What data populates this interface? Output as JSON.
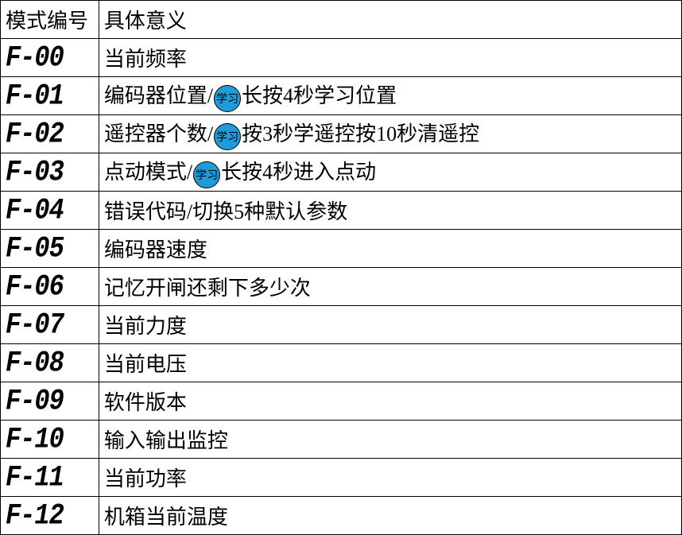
{
  "table": {
    "headers": {
      "code": "模式编号",
      "desc": "具体意义"
    },
    "badge_text": "学习",
    "badge_bg": "#1e9bd8",
    "badge_border": "#000000",
    "border_color": "#000000",
    "bg_color": "#ffffff",
    "header_fontsize": 26,
    "cell_fontsize": 26,
    "code_fontsize": 32,
    "code_color": "#000000",
    "rows": [
      {
        "code": "F-00",
        "parts": [
          {
            "t": "text",
            "v": "当前频率"
          }
        ]
      },
      {
        "code": "F-01",
        "parts": [
          {
            "t": "text",
            "v": "编码器位置/"
          },
          {
            "t": "badge"
          },
          {
            "t": "text",
            "v": "长按4秒学习位置"
          }
        ]
      },
      {
        "code": "F-02",
        "parts": [
          {
            "t": "text",
            "v": "遥控器个数/"
          },
          {
            "t": "badge"
          },
          {
            "t": "text",
            "v": "按3秒学遥控按10秒清遥控"
          }
        ]
      },
      {
        "code": "F-03",
        "parts": [
          {
            "t": "text",
            "v": "点动模式/"
          },
          {
            "t": "badge"
          },
          {
            "t": "text",
            "v": "长按4秒进入点动"
          }
        ]
      },
      {
        "code": "F-04",
        "parts": [
          {
            "t": "text",
            "v": "错误代码/切换5种默认参数"
          }
        ]
      },
      {
        "code": "F-05",
        "parts": [
          {
            "t": "text",
            "v": "编码器速度"
          }
        ]
      },
      {
        "code": "F-06",
        "parts": [
          {
            "t": "text",
            "v": "记忆开闸还剩下多少次"
          }
        ]
      },
      {
        "code": "F-07",
        "parts": [
          {
            "t": "text",
            "v": "当前力度"
          }
        ]
      },
      {
        "code": "F-08",
        "parts": [
          {
            "t": "text",
            "v": "当前电压"
          }
        ]
      },
      {
        "code": "F-09",
        "parts": [
          {
            "t": "text",
            "v": "软件版本"
          }
        ]
      },
      {
        "code": "F-10",
        "parts": [
          {
            "t": "text",
            "v": "输入输出监控"
          }
        ]
      },
      {
        "code": "F-11",
        "parts": [
          {
            "t": "text",
            "v": "当前功率"
          }
        ]
      },
      {
        "code": "F-12",
        "parts": [
          {
            "t": "text",
            "v": "机箱当前温度"
          }
        ]
      }
    ]
  }
}
